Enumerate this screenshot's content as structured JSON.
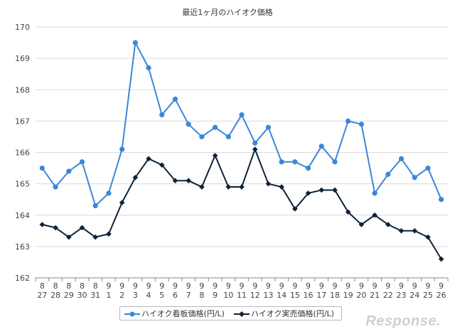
{
  "chart_data": {
    "type": "line",
    "title": "最近1ヶ月のハイオク価格",
    "xlabel": "",
    "ylabel": "",
    "ylim": [
      162,
      170
    ],
    "yticks": [
      "162",
      "163",
      "164",
      "165",
      "166",
      "167",
      "168",
      "169",
      "170"
    ],
    "grid": true,
    "legend_position": "bottom",
    "categories": [
      {
        "month": "8",
        "day": "27"
      },
      {
        "month": "8",
        "day": "28"
      },
      {
        "month": "8",
        "day": "29"
      },
      {
        "month": "8",
        "day": "30"
      },
      {
        "month": "8",
        "day": "31"
      },
      {
        "month": "9",
        "day": "1"
      },
      {
        "month": "9",
        "day": "2"
      },
      {
        "month": "9",
        "day": "3"
      },
      {
        "month": "9",
        "day": "4"
      },
      {
        "month": "9",
        "day": "5"
      },
      {
        "month": "9",
        "day": "6"
      },
      {
        "month": "9",
        "day": "7"
      },
      {
        "month": "9",
        "day": "8"
      },
      {
        "month": "9",
        "day": "9"
      },
      {
        "month": "9",
        "day": "10"
      },
      {
        "month": "9",
        "day": "11"
      },
      {
        "month": "9",
        "day": "12"
      },
      {
        "month": "9",
        "day": "13"
      },
      {
        "month": "9",
        "day": "14"
      },
      {
        "month": "9",
        "day": "15"
      },
      {
        "month": "9",
        "day": "16"
      },
      {
        "month": "9",
        "day": "17"
      },
      {
        "month": "9",
        "day": "18"
      },
      {
        "month": "9",
        "day": "19"
      },
      {
        "month": "9",
        "day": "20"
      },
      {
        "month": "9",
        "day": "21"
      },
      {
        "month": "9",
        "day": "22"
      },
      {
        "month": "9",
        "day": "23"
      },
      {
        "month": "9",
        "day": "24"
      },
      {
        "month": "9",
        "day": "25"
      },
      {
        "month": "9",
        "day": "26"
      }
    ],
    "series": [
      {
        "name": "ハイオク看板価格(円/L)",
        "color": "#3a87d8",
        "marker": "circle",
        "values": [
          165.5,
          164.9,
          165.4,
          165.7,
          164.3,
          164.7,
          166.1,
          169.5,
          168.7,
          167.2,
          167.7,
          166.9,
          166.5,
          166.8,
          166.5,
          167.2,
          166.3,
          166.8,
          165.7,
          165.7,
          165.5,
          166.2,
          165.7,
          167.0,
          166.9,
          164.7,
          165.3,
          165.8,
          165.2,
          165.5,
          164.5
        ]
      },
      {
        "name": "ハイオク実売価格(円/L)",
        "color": "#0f2238",
        "marker": "diamond",
        "values": [
          163.7,
          163.6,
          163.3,
          163.6,
          163.3,
          163.4,
          164.4,
          165.2,
          165.8,
          165.6,
          165.1,
          165.1,
          164.9,
          165.9,
          164.9,
          164.9,
          166.1,
          165.0,
          164.9,
          164.2,
          164.7,
          164.8,
          164.8,
          164.1,
          163.7,
          164.0,
          163.7,
          163.5,
          163.5,
          163.3,
          162.6
        ]
      }
    ]
  },
  "watermark": "Response."
}
